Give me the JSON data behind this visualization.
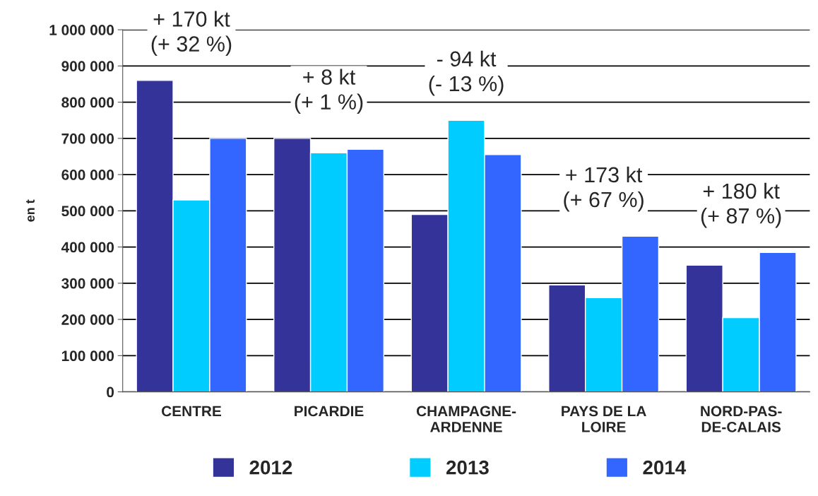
{
  "chart_data": {
    "type": "bar",
    "ylabel": "en t",
    "categories": [
      "CENTRE",
      "PICARDIE",
      "CHAMPAGNE-\nARDENNE",
      "PAYS DE LA\nLOIRE",
      "NORD-PAS-\nDE-CALAIS"
    ],
    "series": [
      {
        "name": "2012",
        "color": "#333399",
        "values": [
          860000,
          700000,
          490000,
          295000,
          350000
        ]
      },
      {
        "name": "2013",
        "color": "#00ccff",
        "values": [
          530000,
          660000,
          750000,
          260000,
          205000
        ]
      },
      {
        "name": "2014",
        "color": "#3366ff",
        "values": [
          700000,
          670000,
          655000,
          430000,
          385000
        ]
      }
    ],
    "ylim": [
      0,
      1000000
    ],
    "yticks": [
      0,
      {
        "value": 100000,
        "label": "100 000"
      },
      {
        "value": 200000,
        "label": "200 000"
      },
      {
        "value": 300000,
        "label": "300 000"
      },
      {
        "value": 400000,
        "label": "400 000"
      },
      {
        "value": 500000,
        "label": "500 000"
      },
      {
        "value": 600000,
        "label": "600 000"
      },
      {
        "value": 700000,
        "label": "700 000"
      },
      {
        "value": 800000,
        "label": "800 000"
      },
      {
        "value": 900000,
        "label": "900 000"
      },
      {
        "value": 1000000,
        "label": "1 000 000"
      }
    ],
    "annotations": [
      "+ 170 kt\n(+ 32 %)",
      "+ 8 kt\n(+ 1 %)",
      "- 94 kt\n(- 13 %)",
      "+ 173 kt\n(+ 67 %)",
      "+ 180 kt\n(+ 87 %)"
    ],
    "grid": "y",
    "legend": "bottom"
  }
}
